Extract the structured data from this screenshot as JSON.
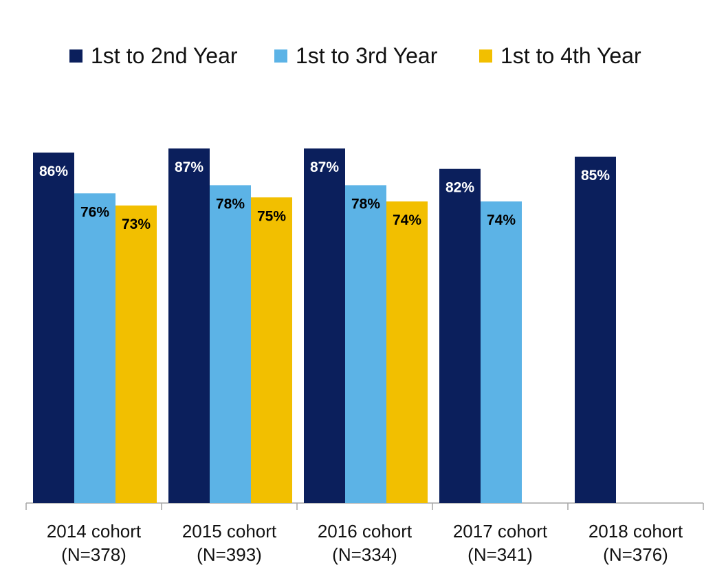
{
  "chart_data": {
    "type": "bar",
    "categories": [
      "2014 cohort",
      "2015 cohort",
      "2016 cohort",
      "2017 cohort",
      "2018 cohort"
    ],
    "category_sublabels": [
      "(N=378)",
      "(N=393)",
      "(N=334)",
      "(N=341)",
      "(N=376)"
    ],
    "series": [
      {
        "name": "1st to 2nd Year",
        "color": "#0b1f5c",
        "values": [
          86,
          87,
          87,
          82,
          85
        ],
        "labels": [
          "86%",
          "87%",
          "87%",
          "82%",
          "85%"
        ]
      },
      {
        "name": "1st to 3rd Year",
        "color": "#5cb3e6",
        "values": [
          76,
          78,
          78,
          74,
          null
        ],
        "labels": [
          "76%",
          "78%",
          "78%",
          "74%",
          ""
        ]
      },
      {
        "name": "1st to 4th Year",
        "color": "#f2bf00",
        "values": [
          73,
          75,
          74,
          null,
          null
        ],
        "labels": [
          "73%",
          "75%",
          "74%",
          "",
          ""
        ]
      }
    ],
    "ylim": [
      0,
      100
    ],
    "grid": false,
    "legend_position": "top",
    "value_unit": "%"
  }
}
